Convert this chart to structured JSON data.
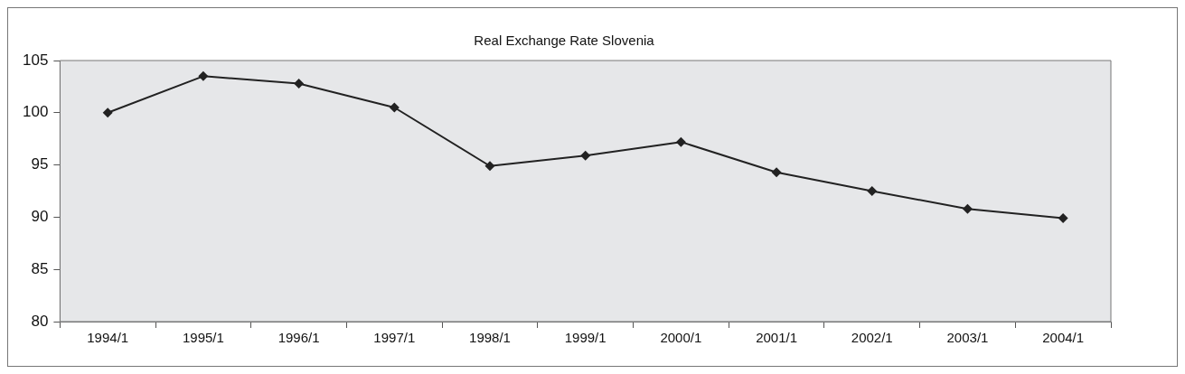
{
  "chart_data": {
    "type": "line",
    "title": "Real Exchange Rate Slovenia",
    "categories": [
      "1994/1",
      "1995/1",
      "1996/1",
      "1997/1",
      "1998/1",
      "1999/1",
      "2000/1",
      "2001/1",
      "2002/1",
      "2003/1",
      "2004/1"
    ],
    "series": [
      {
        "color": "#222222",
        "values": [
          100.0,
          103.5,
          102.8,
          100.5,
          94.9,
          95.9,
          97.2,
          94.3,
          92.5,
          90.8,
          89.9
        ]
      }
    ],
    "ylim": [
      80,
      105
    ],
    "yticks": [
      80,
      85,
      90,
      95,
      100,
      105
    ],
    "grid": false,
    "legend": false,
    "marker": "diamond",
    "line_style": "solid"
  }
}
